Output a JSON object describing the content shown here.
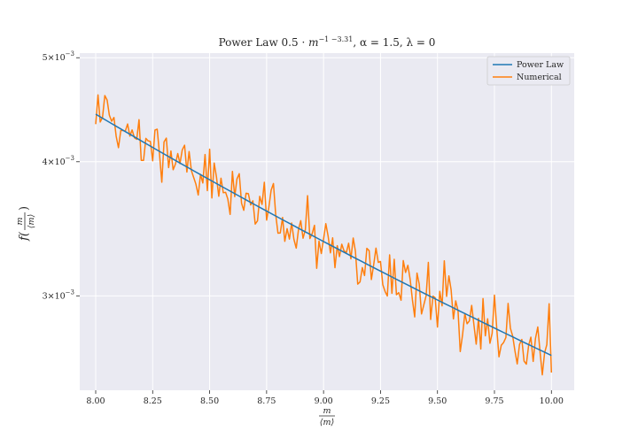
{
  "chart_data": {
    "type": "line",
    "title": "Power Law  0.5 · m^{−1 −3.31}, α = 1.5, λ = 0",
    "title_parts": {
      "prefix": "Power Law  0.5 · ",
      "base": "m",
      "exponent": "−1 −3.31",
      "suffix": ", α = 1.5, λ = 0"
    },
    "xlabel": {
      "num": "m",
      "den": "⟨m⟩"
    },
    "ylabel": {
      "lead": "f(",
      "num": "m",
      "den": "⟨m⟩",
      "close": ")"
    },
    "xlim": [
      7.93,
      10.1
    ],
    "ylim": [
      0.00245,
      0.00505
    ],
    "yscale": "log",
    "grid": true,
    "legend_position": "top-right",
    "x_ticks": [
      {
        "value": 8.0,
        "label": "8.00"
      },
      {
        "value": 8.25,
        "label": "8.25"
      },
      {
        "value": 8.5,
        "label": "8.50"
      },
      {
        "value": 8.75,
        "label": "8.75"
      },
      {
        "value": 9.0,
        "label": "9.00"
      },
      {
        "value": 9.25,
        "label": "9.25"
      },
      {
        "value": 9.5,
        "label": "9.50"
      },
      {
        "value": 9.75,
        "label": "9.75"
      },
      {
        "value": 10.0,
        "label": "10.00"
      }
    ],
    "y_ticks": [
      {
        "value": 0.005,
        "mantissa": "5",
        "base": "×10",
        "exponent": "−3"
      },
      {
        "value": 0.004,
        "mantissa": "4",
        "base": "×10",
        "exponent": "−3"
      },
      {
        "value": 0.003,
        "mantissa": "3",
        "base": "×10",
        "exponent": "−3"
      }
    ],
    "series": [
      {
        "name": "Power Law",
        "color": "#1f77b4",
        "kind": "curve",
        "x_start": 8.0,
        "x_end": 10.0,
        "y_start": 0.00443,
        "y_end": 0.00264
      },
      {
        "name": "Numerical",
        "color": "#ff7f0e",
        "kind": "noisy",
        "x_start": 8.0,
        "x_end": 10.0,
        "points": 200,
        "y_start": 0.00443,
        "y_end": 0.00264,
        "seed": 17,
        "noise_sd": 0.00012
      }
    ]
  }
}
